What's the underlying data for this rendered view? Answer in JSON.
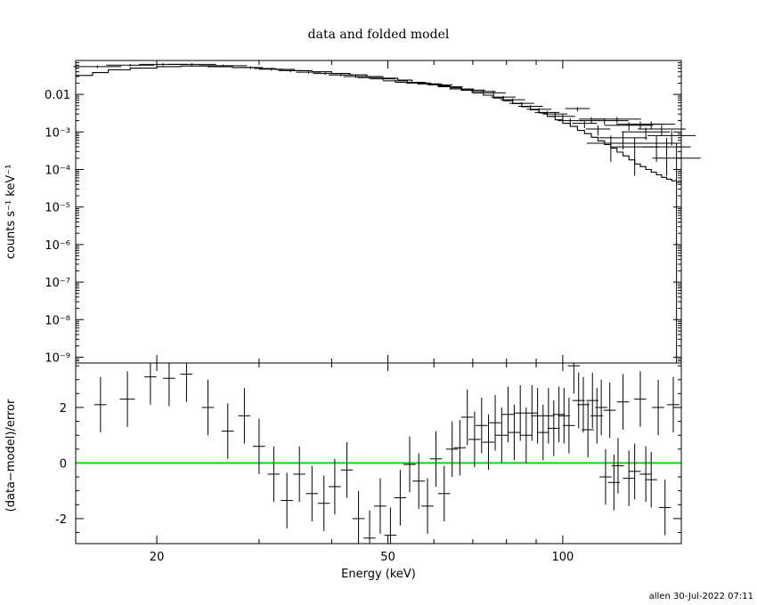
{
  "chart_data": [
    {
      "panel": "spectrum",
      "type": "line",
      "title": "data and folded model",
      "xlabel": "Energy (keV)",
      "ylabel": "counts s⁻¹ keV⁻¹",
      "xscale": "log",
      "yscale": "log",
      "xlim": [
        14.5,
        160
      ],
      "ylim": [
        7e-10,
        0.08
      ],
      "yticks": [
        {
          "value": 0.01,
          "label": "0.01"
        },
        {
          "value": 0.001,
          "label": "10⁻³"
        },
        {
          "value": 0.0001,
          "label": "10⁻⁴"
        },
        {
          "value": 1e-05,
          "label": "10⁻⁵"
        },
        {
          "value": 1e-06,
          "label": "10⁻⁶"
        },
        {
          "value": 1e-07,
          "label": "10⁻⁷"
        },
        {
          "value": 1e-08,
          "label": "10⁻⁸"
        },
        {
          "value": 1e-09,
          "label": "10⁻⁹"
        }
      ],
      "series": [
        {
          "kind": "data",
          "points": [
            [
              15.8,
              0.055,
              1.1,
              0.0003
            ],
            [
              18.0,
              0.06,
              1.1,
              0.0003
            ],
            [
              20.5,
              0.063,
              1.1,
              0.0003
            ],
            [
              23.0,
              0.063,
              1.1,
              0.0003
            ],
            [
              26.0,
              0.058,
              1.1,
              0.0003
            ],
            [
              29.0,
              0.052,
              1.05,
              0.0003
            ],
            [
              31.5,
              0.047,
              1.05,
              0.0003
            ],
            [
              34.0,
              0.043,
              1.05,
              0.0003
            ],
            [
              36.5,
              0.039,
              1.05,
              0.0003
            ],
            [
              39.0,
              0.036,
              1.05,
              0.0003
            ],
            [
              41.5,
              0.033,
              1.05,
              0.0003
            ],
            [
              44.0,
              0.03,
              1.05,
              0.0003
            ],
            [
              46.5,
              0.028,
              1.05,
              0.0003
            ],
            [
              49.0,
              0.026,
              1.05,
              0.0003
            ],
            [
              51.5,
              0.023,
              1.05,
              0.0003
            ],
            [
              54.0,
              0.021,
              1.05,
              0.0003
            ],
            [
              56.5,
              0.02,
              1.05,
              0.0003
            ],
            [
              59.0,
              0.019,
              1.05,
              0.0003
            ],
            [
              61.5,
              0.018,
              1.05,
              0.0003
            ],
            [
              64.0,
              0.016,
              1.05,
              0.0003
            ],
            [
              67.0,
              0.014,
              1.05,
              0.0003
            ],
            [
              70.0,
              0.013,
              1.05,
              0.0003
            ],
            [
              73.0,
              0.012,
              1.05,
              0.0003
            ],
            [
              76.0,
              0.011,
              1.05,
              0.0003
            ],
            [
              79.0,
              0.0085,
              1.05,
              0.0003
            ],
            [
              82.0,
              0.0072,
              1.05,
              0.0003
            ],
            [
              85.0,
              0.0058,
              1.05,
              0.0003
            ],
            [
              88.0,
              0.0048,
              1.05,
              0.0003
            ],
            [
              91.0,
              0.004,
              1.05,
              0.0003
            ],
            [
              94.0,
              0.0033,
              1.05,
              0.0003
            ],
            [
              97.0,
              0.003,
              1.05,
              0.0003
            ],
            [
              100.0,
              0.0026,
              1.05,
              0.0003
            ],
            [
              103.0,
              0.002,
              1.05,
              0.0003
            ],
            [
              106.0,
              0.0042,
              1.05,
              0.0003
            ],
            [
              109.0,
              0.0017,
              1.05,
              0.0003
            ],
            [
              112.0,
              0.0022,
              1.05,
              0.0004
            ],
            [
              115.0,
              0.0012,
              1.05,
              0.0004
            ],
            [
              118.0,
              0.002,
              1.1,
              1e-10
            ],
            [
              121.0,
              0.0005,
              1.1,
              1e-10
            ],
            [
              124.0,
              0.0022,
              1.1,
              1e-10
            ],
            [
              127.0,
              0.0007,
              1.1,
              1e-10
            ],
            [
              130.0,
              0.0015,
              1.1,
              1e-10
            ],
            [
              133.0,
              0.0004,
              1.1,
              1e-10
            ],
            [
              136.0,
              0.0016,
              1.1,
              1e-10
            ],
            [
              139.0,
              0.001,
              1.1,
              1e-10
            ],
            [
              142.0,
              0.0016,
              1.1,
              1e-10
            ],
            [
              145.0,
              0.0005,
              1.1,
              1e-10
            ],
            [
              148.0,
              0.0012,
              1.1,
              1e-10
            ],
            [
              151.0,
              0.0004,
              1.1,
              1e-10
            ],
            [
              154.0,
              0.0008,
              1.1,
              1e-10
            ],
            [
              157.0,
              0.0002,
              1.1,
              1e-10
            ]
          ]
        },
        {
          "kind": "model",
          "steps": [
            [
              14.5,
              0.032
            ],
            [
              15.5,
              0.038
            ],
            [
              16.5,
              0.045
            ],
            [
              18.0,
              0.05
            ],
            [
              20.0,
              0.055
            ],
            [
              22.0,
              0.057
            ],
            [
              24.5,
              0.055
            ],
            [
              27.0,
              0.052
            ],
            [
              29.5,
              0.049
            ],
            [
              32.0,
              0.046
            ],
            [
              34.5,
              0.043
            ],
            [
              37.0,
              0.04
            ],
            [
              40.0,
              0.036
            ],
            [
              43.0,
              0.033
            ],
            [
              46.0,
              0.03
            ],
            [
              49.0,
              0.027
            ],
            [
              52.0,
              0.024
            ],
            [
              55.0,
              0.021
            ],
            [
              58.0,
              0.019
            ],
            [
              61.0,
              0.017
            ],
            [
              64.0,
              0.015
            ],
            [
              67.0,
              0.013
            ],
            [
              70.0,
              0.011
            ],
            [
              73.0,
              0.0095
            ],
            [
              76.0,
              0.008
            ],
            [
              79.0,
              0.0068
            ],
            [
              82.0,
              0.0057
            ],
            [
              85.0,
              0.0047
            ],
            [
              88.0,
              0.0039
            ],
            [
              91.0,
              0.0032
            ],
            [
              94.0,
              0.0026
            ],
            [
              97.0,
              0.0021
            ],
            [
              100.0,
              0.0017
            ],
            [
              103.0,
              0.0014
            ],
            [
              106.0,
              0.0011
            ],
            [
              109.0,
              0.0009
            ],
            [
              112.0,
              0.00072
            ],
            [
              115.0,
              0.00058
            ],
            [
              118.0,
              0.00046
            ],
            [
              121.0,
              0.00037
            ],
            [
              124.0,
              0.00029
            ],
            [
              127.0,
              0.00023
            ],
            [
              130.0,
              0.00018
            ],
            [
              133.0,
              0.00014
            ],
            [
              136.0,
              0.00012
            ],
            [
              139.0,
              0.0001
            ],
            [
              142.0,
              8.5e-05
            ],
            [
              145.0,
              7.2e-05
            ],
            [
              148.0,
              6.2e-05
            ],
            [
              151.0,
              5.5e-05
            ],
            [
              154.0,
              5e-05
            ],
            [
              157.0,
              4.5e-05
            ],
            [
              160.0,
              4e-05
            ]
          ]
        }
      ]
    },
    {
      "panel": "residuals",
      "type": "scatter",
      "xlabel": "Energy (keV)",
      "ylabel": "(data−model)/error",
      "xscale": "log",
      "xlim": [
        14.5,
        160
      ],
      "ylim": [
        -2.9,
        3.6
      ],
      "yticks": [
        -2,
        0,
        2
      ],
      "xticks": [
        20,
        50,
        100
      ],
      "zero_line_color": "#00dd00",
      "points": [
        [
          16.0,
          2.1,
          0.8,
          1.0
        ],
        [
          17.8,
          2.3,
          1.0,
          1.0
        ],
        [
          19.5,
          3.1,
          0.8,
          1.0
        ],
        [
          21.0,
          3.05,
          0.8,
          1.0
        ],
        [
          22.5,
          3.2,
          0.8,
          1.0
        ],
        [
          24.5,
          2.0,
          0.8,
          1.0
        ],
        [
          26.5,
          1.15,
          0.8,
          1.0
        ],
        [
          28.3,
          1.7,
          0.8,
          1.0
        ],
        [
          30.0,
          0.6,
          0.8,
          1.0
        ],
        [
          31.8,
          -0.4,
          0.8,
          1.0
        ],
        [
          33.5,
          -1.35,
          0.8,
          1.0
        ],
        [
          35.2,
          -0.4,
          0.8,
          1.0
        ],
        [
          37.0,
          -1.1,
          0.8,
          1.0
        ],
        [
          38.8,
          -1.45,
          0.8,
          1.0
        ],
        [
          40.5,
          -0.85,
          0.8,
          1.0
        ],
        [
          42.5,
          -0.25,
          0.8,
          1.0
        ],
        [
          44.5,
          -2.0,
          0.8,
          1.0
        ],
        [
          46.5,
          -2.7,
          0.8,
          1.0
        ],
        [
          48.5,
          -1.55,
          0.8,
          1.0
        ],
        [
          50.5,
          -2.6,
          0.8,
          1.0
        ],
        [
          52.5,
          -1.25,
          0.8,
          1.0
        ],
        [
          54.5,
          -0.05,
          0.8,
          1.0
        ],
        [
          56.5,
          -0.65,
          0.8,
          1.0
        ],
        [
          58.5,
          -1.55,
          0.8,
          1.0
        ],
        [
          60.5,
          0.15,
          0.8,
          1.0
        ],
        [
          62.5,
          -1.1,
          0.8,
          1.0
        ],
        [
          64.5,
          0.5,
          0.8,
          1.0
        ],
        [
          66.5,
          0.55,
          0.8,
          1.0
        ],
        [
          68.5,
          1.65,
          0.8,
          1.0
        ],
        [
          70.5,
          0.85,
          0.8,
          1.0
        ],
        [
          72.5,
          1.35,
          0.8,
          1.0
        ],
        [
          74.5,
          0.75,
          0.8,
          1.0
        ],
        [
          76.5,
          1.45,
          0.8,
          1.0
        ],
        [
          78.5,
          1.0,
          0.8,
          1.0
        ],
        [
          80.5,
          1.75,
          0.8,
          1.0
        ],
        [
          82.5,
          1.1,
          0.8,
          1.0
        ],
        [
          84.5,
          1.8,
          0.8,
          1.0
        ],
        [
          86.5,
          1.0,
          0.8,
          1.0
        ],
        [
          88.5,
          1.8,
          0.8,
          1.0
        ],
        [
          90.5,
          1.7,
          0.8,
          1.0
        ],
        [
          92.5,
          1.1,
          0.8,
          1.0
        ],
        [
          94.5,
          1.7,
          0.8,
          1.0
        ],
        [
          96.5,
          1.25,
          0.8,
          1.0
        ],
        [
          98.5,
          1.75,
          0.8,
          1.0
        ],
        [
          100.5,
          1.7,
          0.8,
          1.0
        ],
        [
          102.5,
          1.35,
          0.8,
          1.0
        ],
        [
          104.5,
          3.5,
          0.8,
          1.0
        ],
        [
          106.5,
          2.25,
          0.8,
          1.0
        ],
        [
          108.5,
          2.1,
          0.8,
          1.0
        ],
        [
          110.5,
          1.2,
          0.8,
          1.0
        ],
        [
          112.5,
          2.25,
          0.8,
          1.0
        ],
        [
          114.5,
          1.7,
          0.8,
          1.0
        ],
        [
          116.5,
          2.0,
          0.8,
          1.0
        ],
        [
          118.5,
          -0.5,
          0.8,
          1.0
        ],
        [
          120.5,
          1.9,
          0.8,
          1.0
        ],
        [
          122.5,
          -0.7,
          0.8,
          1.0
        ],
        [
          124.5,
          -0.1,
          0.8,
          1.0
        ],
        [
          127.0,
          2.2,
          0.8,
          1.0
        ],
        [
          130.0,
          -0.55,
          0.8,
          1.0
        ],
        [
          133.0,
          -0.3,
          0.8,
          1.0
        ],
        [
          136.0,
          2.3,
          0.8,
          1.0
        ],
        [
          139.0,
          -0.4,
          0.8,
          1.0
        ],
        [
          142.0,
          -0.6,
          0.8,
          1.0
        ],
        [
          146.0,
          2.0,
          0.8,
          1.0
        ],
        [
          150.0,
          -1.6,
          0.8,
          1.0
        ],
        [
          155.0,
          2.1,
          0.8,
          1.0
        ]
      ]
    }
  ],
  "footer": {
    "stamp": "allen 30-Jul-2022 07:11"
  }
}
